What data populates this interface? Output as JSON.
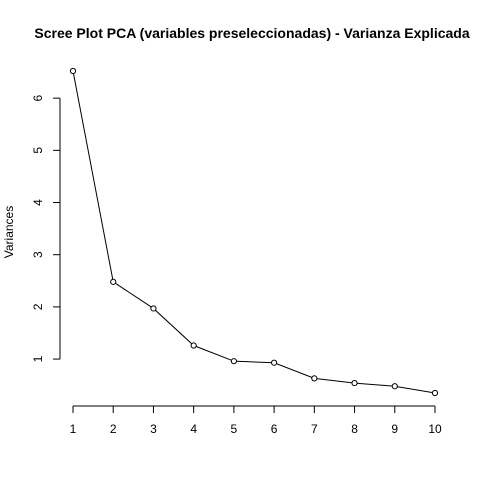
{
  "chart_data": {
    "type": "line",
    "title": "Scree Plot PCA (variables preseleccionadas) - Varianza Explicada",
    "xlabel": "",
    "ylabel": "Variances",
    "x": [
      1,
      2,
      3,
      4,
      5,
      6,
      7,
      8,
      9,
      10
    ],
    "values": [
      6.52,
      2.48,
      1.97,
      1.26,
      0.96,
      0.93,
      0.63,
      0.54,
      0.48,
      0.35
    ],
    "xlim": [
      1,
      10
    ],
    "ylim": [
      0.35,
      6.52
    ],
    "xticks": [
      1,
      2,
      3,
      4,
      5,
      6,
      7,
      8,
      9,
      10
    ],
    "yticks": [
      1,
      2,
      3,
      4,
      5,
      6
    ],
    "grid": false,
    "markers": "open-circle",
    "colors": {
      "line": "#000000",
      "marker_fill": "#ffffff",
      "background": "#ffffff"
    }
  }
}
